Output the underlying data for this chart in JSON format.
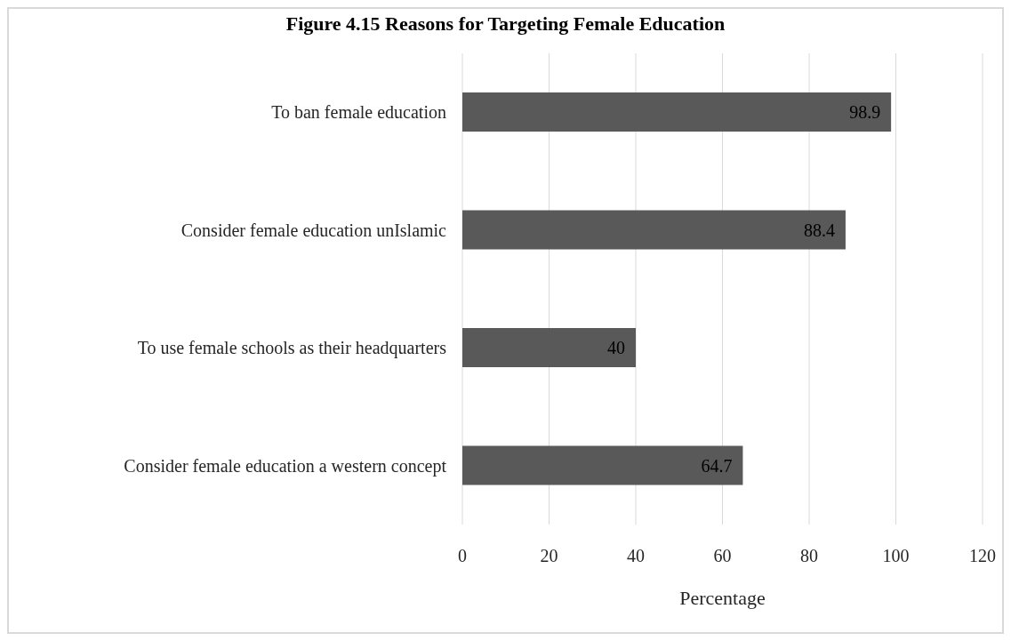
{
  "chart_data": {
    "type": "bar",
    "orientation": "horizontal",
    "title": "Figure 4.15 Reasons for Targeting Female Education",
    "xlabel": "Percentage",
    "categories": [
      "To ban female education",
      "Consider female education unIslamic",
      "To use female schools as their headquarters",
      "Consider female education a western concept"
    ],
    "values": [
      98.9,
      88.4,
      40,
      64.7
    ],
    "color": "#595959",
    "xlim": [
      0,
      120
    ],
    "xticks": [
      0,
      20,
      40,
      60,
      80,
      100,
      120
    ],
    "grid": "x",
    "data_labels": true
  }
}
